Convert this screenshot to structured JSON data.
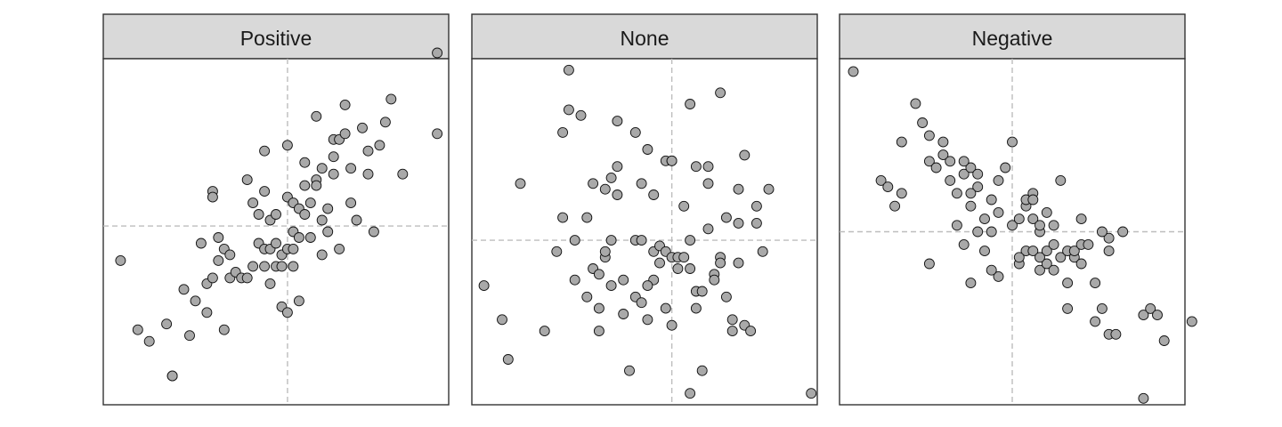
{
  "chart_data": [
    {
      "type": "scatter",
      "title": "Positive",
      "xlim": [
        -3.2,
        2.8
      ],
      "ylim": [
        -3.1,
        2.9
      ],
      "refline": {
        "x": 0,
        "y": 0
      },
      "x": [
        -2.9,
        -2.6,
        -2.4,
        -2.1,
        -2.0,
        -1.8,
        -1.7,
        -1.6,
        -1.5,
        -1.4,
        -1.4,
        -1.3,
        -1.3,
        -1.2,
        -1.2,
        -1.1,
        -1.1,
        -1.0,
        -1.0,
        -0.9,
        -0.8,
        -0.7,
        -0.7,
        -0.6,
        -0.6,
        -0.5,
        -0.5,
        -0.4,
        -0.4,
        -0.4,
        -0.3,
        -0.3,
        -0.3,
        -0.2,
        -0.2,
        -0.2,
        -0.1,
        -0.1,
        -0.1,
        0.0,
        0.0,
        0.0,
        0.0,
        0.1,
        0.1,
        0.1,
        0.1,
        0.2,
        0.2,
        0.2,
        0.3,
        0.3,
        0.3,
        0.4,
        0.4,
        0.5,
        0.5,
        0.5,
        0.6,
        0.6,
        0.6,
        0.7,
        0.7,
        0.8,
        0.8,
        0.8,
        0.9,
        0.9,
        1.0,
        1.0,
        1.1,
        1.1,
        1.2,
        1.3,
        1.4,
        1.4,
        1.5,
        1.6,
        1.7,
        1.8,
        2.0,
        2.6,
        2.6,
        -2.0,
        -1.3,
        -0.4
      ],
      "y": [
        -0.6,
        -1.8,
        -2.0,
        -1.7,
        -2.6,
        -1.1,
        -1.9,
        -1.3,
        -0.3,
        -1.5,
        -1.0,
        -0.9,
        0.6,
        -0.6,
        -0.2,
        -1.8,
        -0.4,
        -0.5,
        -0.9,
        -0.8,
        -0.9,
        -0.9,
        0.8,
        -0.7,
        0.4,
        -0.3,
        0.2,
        -0.7,
        -0.4,
        0.6,
        -0.4,
        0.1,
        -1.0,
        -0.7,
        -0.3,
        0.2,
        -0.7,
        -0.5,
        -1.4,
        -0.4,
        0.5,
        1.4,
        -1.5,
        -0.7,
        -0.1,
        0.4,
        -0.4,
        -1.3,
        0.3,
        -0.2,
        0.2,
        0.7,
        1.1,
        -0.2,
        0.4,
        0.8,
        0.7,
        1.9,
        -0.5,
        0.1,
        1.0,
        0.3,
        -0.1,
        1.2,
        1.5,
        0.9,
        -0.4,
        1.5,
        1.6,
        2.1,
        0.4,
        1.0,
        0.1,
        1.7,
        0.9,
        1.3,
        -0.1,
        1.4,
        1.8,
        2.2,
        0.9,
        3.0,
        1.6,
        -2.6,
        0.5,
        1.3
      ]
    },
    {
      "type": "scatter",
      "title": "None",
      "xlim": [
        -3.3,
        2.4
      ],
      "ylim": [
        -2.9,
        3.2
      ],
      "refline": {
        "x": 0,
        "y": 0
      },
      "x": [
        -3.1,
        -2.8,
        -2.7,
        -2.5,
        -1.8,
        -1.8,
        -1.7,
        -1.7,
        -1.6,
        -1.6,
        -1.5,
        -1.4,
        -1.4,
        -1.3,
        -1.3,
        -1.2,
        -1.2,
        -1.2,
        -1.1,
        -1.1,
        -1.0,
        -1.0,
        -1.0,
        -0.9,
        -0.9,
        -0.9,
        -0.8,
        -0.8,
        -0.7,
        -0.6,
        -0.6,
        -0.5,
        -0.5,
        -0.5,
        -0.4,
        -0.4,
        -0.3,
        -0.3,
        -0.3,
        -0.2,
        -0.2,
        -0.1,
        -0.1,
        -0.1,
        0.0,
        0.0,
        0.0,
        0.1,
        0.1,
        0.2,
        0.2,
        0.3,
        0.3,
        0.3,
        0.4,
        0.4,
        0.4,
        0.5,
        0.5,
        0.6,
        0.6,
        0.7,
        0.7,
        0.8,
        0.8,
        0.8,
        0.9,
        0.9,
        1.0,
        1.0,
        1.1,
        1.1,
        1.1,
        1.2,
        1.2,
        1.3,
        1.4,
        1.4,
        1.5,
        1.6,
        2.3,
        -0.6,
        0.0,
        0.6,
        -2.1,
        -1.9,
        -1.1,
        -0.4,
        0.3
      ],
      "y": [
        -0.8,
        -1.4,
        -2.1,
        1.0,
        1.9,
        0.4,
        3.0,
        2.3,
        0.0,
        -0.7,
        2.2,
        -1.0,
        0.4,
        -0.5,
        1.0,
        -1.2,
        -1.6,
        -0.6,
        -0.3,
        0.9,
        1.1,
        -0.8,
        0.0,
        1.3,
        0.8,
        2.1,
        -0.7,
        -1.3,
        -2.3,
        -1.0,
        0.0,
        1.0,
        0.0,
        -1.1,
        -1.4,
        1.6,
        -0.7,
        -0.2,
        0.8,
        -0.4,
        -0.1,
        1.4,
        -0.2,
        -1.2,
        -0.3,
        1.4,
        -1.5,
        -0.5,
        -0.3,
        0.6,
        -0.3,
        0.0,
        -0.5,
        -2.7,
        -1.2,
        -0.9,
        1.3,
        -2.3,
        -0.9,
        0.2,
        1.3,
        -0.6,
        -0.7,
        -0.3,
        -0.4,
        2.6,
        -1.0,
        0.4,
        -1.6,
        -1.4,
        0.3,
        0.9,
        -0.4,
        -1.5,
        1.5,
        -1.6,
        0.6,
        0.3,
        -0.2,
        0.9,
        -2.7,
        1.9,
        1.4,
        1.0,
        -1.6,
        -0.2,
        -0.2,
        -0.8,
        2.4
      ]
    },
    {
      "type": "scatter",
      "title": "Negative",
      "xlim": [
        -2.5,
        2.5
      ],
      "ylim": [
        -2.7,
        2.7
      ],
      "refline": {
        "x": 0,
        "y": 0
      },
      "x": [
        -2.3,
        -1.9,
        -1.8,
        -1.7,
        -1.6,
        -1.4,
        -1.3,
        -1.2,
        -1.2,
        -1.1,
        -1.0,
        -1.0,
        -0.9,
        -0.8,
        -0.8,
        -0.7,
        -0.7,
        -0.6,
        -0.6,
        -0.6,
        -0.5,
        -0.5,
        -0.4,
        -0.4,
        -0.3,
        -0.3,
        -0.2,
        -0.2,
        -0.1,
        0.0,
        0.1,
        0.1,
        0.2,
        0.2,
        0.2,
        0.3,
        0.3,
        0.3,
        0.4,
        0.4,
        0.4,
        0.5,
        0.5,
        0.5,
        0.6,
        0.6,
        0.7,
        0.7,
        0.8,
        0.8,
        0.9,
        0.9,
        1.0,
        1.0,
        1.0,
        1.1,
        1.2,
        1.2,
        1.3,
        1.4,
        1.4,
        1.4,
        1.5,
        1.6,
        1.9,
        1.9,
        2.0,
        2.1,
        2.2,
        2.6,
        -1.2,
        -0.7,
        -0.2,
        0.3,
        -0.5,
        -0.9,
        -0.3,
        0.1,
        0.6,
        0.8,
        1.3,
        -1.6,
        -0.6,
        0.4,
        0.0
      ],
      "y": [
        2.5,
        0.8,
        0.7,
        0.4,
        0.6,
        2.0,
        1.7,
        1.1,
        -0.5,
        1.0,
        1.4,
        1.2,
        0.8,
        0.6,
        0.1,
        0.9,
        -0.2,
        1.0,
        0.4,
        -0.8,
        0.7,
        0.0,
        -0.3,
        0.2,
        0.0,
        0.5,
        0.3,
        -0.7,
        1.0,
        0.1,
        0.2,
        -0.5,
        0.4,
        0.5,
        -0.3,
        -0.3,
        0.6,
        0.2,
        0.0,
        -0.6,
        0.1,
        -0.5,
        0.3,
        -0.3,
        -0.6,
        -0.2,
        0.8,
        -0.4,
        -0.3,
        -1.2,
        -0.4,
        -0.3,
        0.2,
        -0.5,
        -0.2,
        -0.2,
        -0.8,
        -1.4,
        -1.2,
        -0.1,
        -0.3,
        -1.6,
        -1.6,
        0.0,
        -2.6,
        -1.3,
        -1.2,
        -1.3,
        -1.7,
        -1.4,
        1.5,
        1.1,
        0.8,
        0.5,
        0.9,
        1.1,
        -0.6,
        -0.4,
        0.1,
        -0.8,
        0.0,
        1.4,
        0.6,
        -0.4,
        1.4
      ]
    }
  ]
}
